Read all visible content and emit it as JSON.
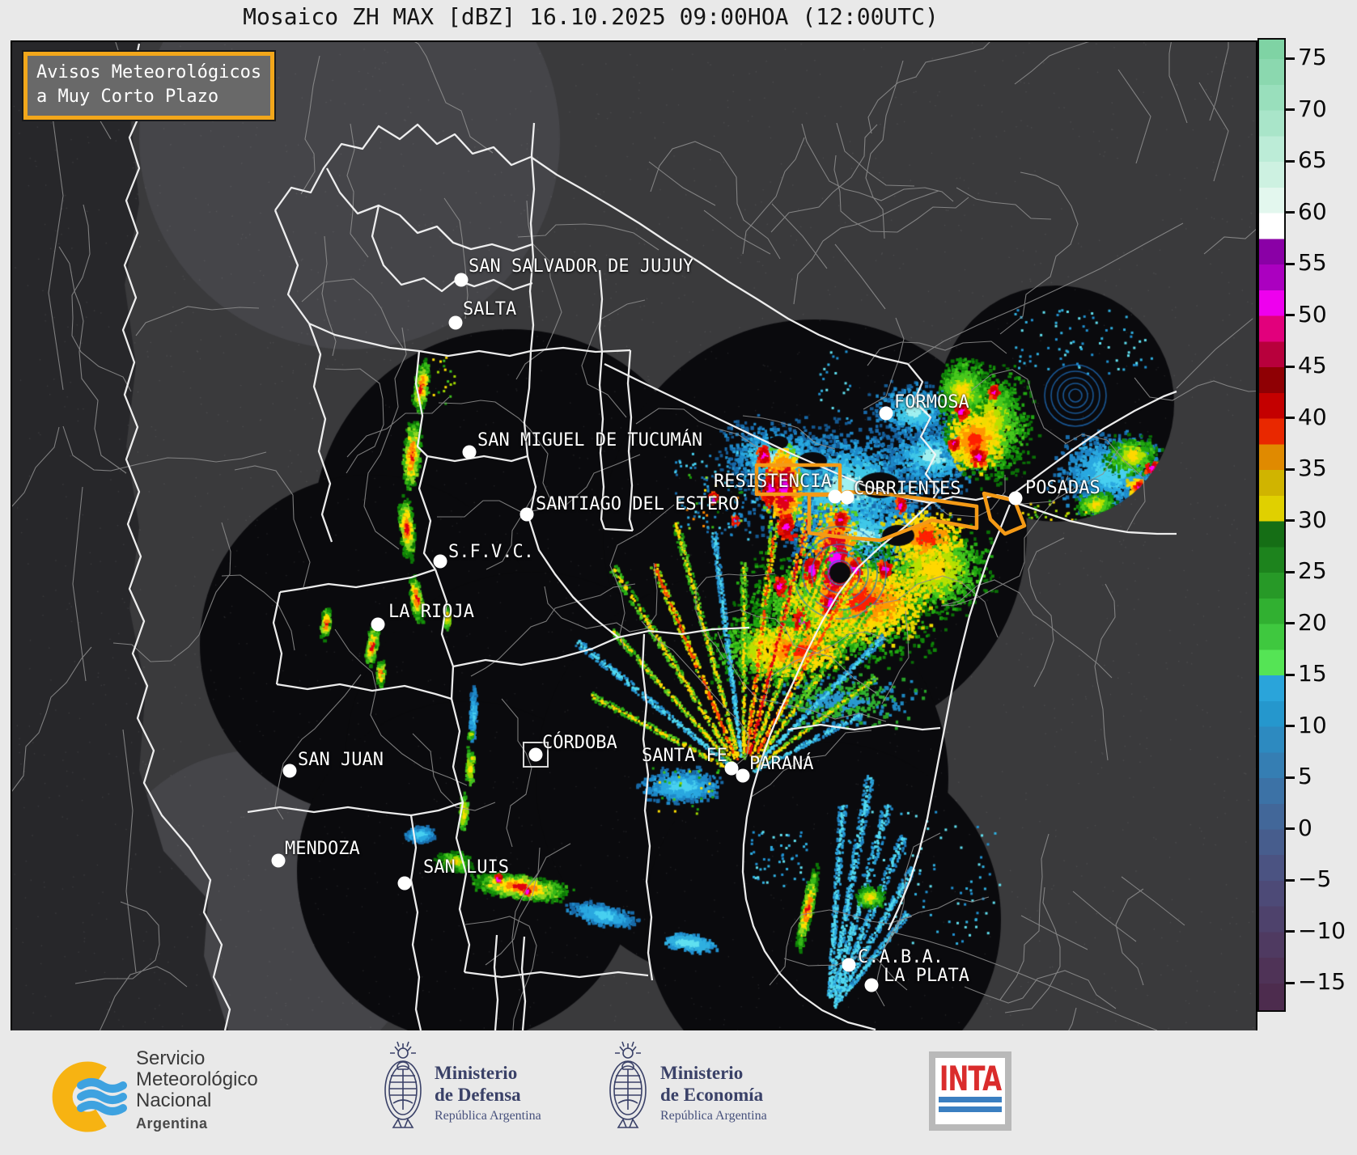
{
  "title": "Mosaico ZH MAX [dBZ] 16.10.2025 09:00HOA (12:00UTC)",
  "warning_box": {
    "line1": "Avisos Meteorológicos",
    "line2": "a Muy Corto Plazo",
    "border_color": "#f2a71b"
  },
  "colorbar": {
    "unit": "dBZ",
    "tick_values": [
      75,
      70,
      65,
      60,
      55,
      50,
      45,
      40,
      35,
      30,
      25,
      20,
      15,
      10,
      5,
      0,
      -5,
      -10,
      -15
    ],
    "segments": [
      [
        77.5,
        "#7fd3a4"
      ],
      [
        75,
        "#8bd8af"
      ],
      [
        72.5,
        "#99dfbc"
      ],
      [
        70,
        "#a9e5c9"
      ],
      [
        67.5,
        "#bcecd7"
      ],
      [
        65,
        "#cdf1e1"
      ],
      [
        62.5,
        "#e3f7ee"
      ],
      [
        60,
        "#ffffff"
      ],
      [
        57.5,
        "#8a00a6"
      ],
      [
        55,
        "#ab00c0"
      ],
      [
        52.5,
        "#ee00ee"
      ],
      [
        50,
        "#e2007c"
      ],
      [
        47.5,
        "#b8003c"
      ],
      [
        45,
        "#8f0004"
      ],
      [
        42.5,
        "#c40000"
      ],
      [
        40,
        "#e92800"
      ],
      [
        37.5,
        "#e08a00"
      ],
      [
        35,
        "#d0b400"
      ],
      [
        32.5,
        "#e0d000"
      ],
      [
        30,
        "#156e15"
      ],
      [
        27.5,
        "#1d831d"
      ],
      [
        25,
        "#279927"
      ],
      [
        22.5,
        "#31b031"
      ],
      [
        20,
        "#3fc83f"
      ],
      [
        17.5,
        "#55e455"
      ],
      [
        15,
        "#2aa4da"
      ],
      [
        12.5,
        "#2597cd"
      ],
      [
        10,
        "#2d8ac0"
      ],
      [
        7.5,
        "#357eb3"
      ],
      [
        5,
        "#3c72a6"
      ],
      [
        2.5,
        "#426799"
      ],
      [
        0,
        "#475d8d"
      ],
      [
        -2.5,
        "#4b5382"
      ],
      [
        -5,
        "#4d4a77"
      ],
      [
        -7.5,
        "#4e426c"
      ],
      [
        -10,
        "#4f3a61"
      ],
      [
        -12.5,
        "#4f3357"
      ],
      [
        -15,
        "#4d2c4e"
      ]
    ]
  },
  "cities": [
    "SAN SALVADOR DE JUJUY",
    "SALTA",
    "FORMOSA",
    "SAN MIGUEL DE TUCUMÁN",
    "SANTIAGO DEL ESTERO",
    "RESISTENCIA",
    "CORRIENTES",
    "POSADAS",
    "S.F.V.C.",
    "LA RIOJA",
    "CÓRDOBA",
    "SANTA FE",
    "PARANÁ",
    "SAN JUAN",
    "MENDOZA",
    "SAN LUIS",
    "C.A.B.A.",
    "LA PLATA"
  ],
  "footer": {
    "smn_name_lines": [
      "Servicio",
      "Meteorológico",
      "Nacional"
    ],
    "smn_country": "Argentina",
    "ministries": [
      {
        "line1": "Ministerio",
        "line2": "de Defensa",
        "sub": "República Argentina"
      },
      {
        "line1": "Ministerio",
        "line2": "de Economía",
        "sub": "República Argentina"
      }
    ],
    "inta": "INTA"
  }
}
